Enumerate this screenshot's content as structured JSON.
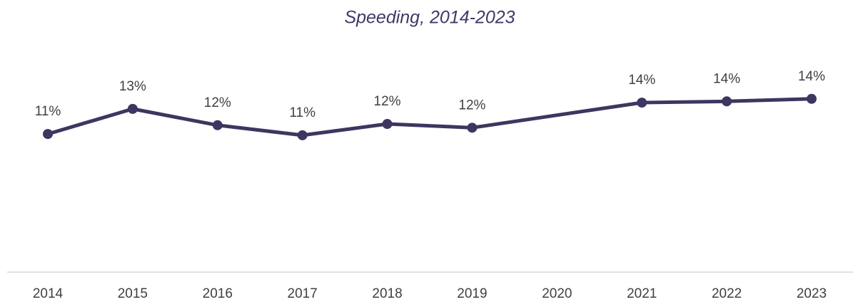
{
  "chart_data": {
    "type": "line",
    "title": "Speeding, 2014-2023",
    "categories": [
      "2014",
      "2015",
      "2016",
      "2017",
      "2018",
      "2019",
      "2020",
      "2021",
      "2022",
      "2023"
    ],
    "series": [
      {
        "name": "Speeding",
        "color": "#3f3560",
        "values": [
          11.0,
          13.0,
          11.7,
          10.9,
          11.8,
          11.5,
          null,
          13.5,
          13.6,
          13.8
        ],
        "value_labels": [
          "11%",
          "13%",
          "12%",
          "11%",
          "12%",
          "12%",
          null,
          "14%",
          "14%",
          "14%"
        ]
      }
    ],
    "ylim": [
      0,
      16
    ],
    "connect_gaps": true,
    "legend": false
  }
}
